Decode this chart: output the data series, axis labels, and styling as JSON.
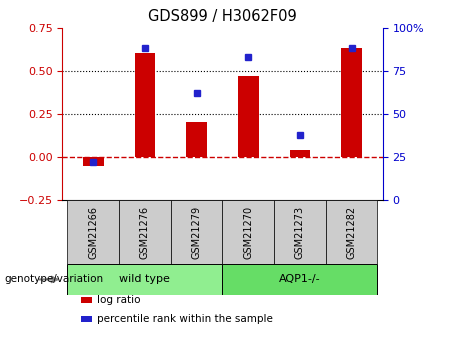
{
  "title": "GDS899 / H3062F09",
  "samples": [
    "GSM21266",
    "GSM21276",
    "GSM21279",
    "GSM21270",
    "GSM21273",
    "GSM21282"
  ],
  "log_ratios": [
    -0.05,
    0.6,
    0.2,
    0.47,
    0.04,
    0.63
  ],
  "percentile_ranks": [
    22,
    88,
    62,
    83,
    38,
    88
  ],
  "ylim_left": [
    -0.25,
    0.75
  ],
  "ylim_right": [
    0,
    100
  ],
  "bar_color": "#cc0000",
  "dot_color": "#2222cc",
  "hline_color": "#cc0000",
  "dotted_lines": [
    0.25,
    0.5
  ],
  "groups": [
    {
      "label": "wild type",
      "indices": [
        0,
        1,
        2
      ],
      "color": "#90ee90"
    },
    {
      "label": "AQP1-/-",
      "indices": [
        3,
        4,
        5
      ],
      "color": "#66dd66"
    }
  ],
  "group_label": "genotype/variation",
  "legend_items": [
    {
      "color": "#cc0000",
      "label": "log ratio"
    },
    {
      "color": "#2222cc",
      "label": "percentile rank within the sample"
    }
  ],
  "tick_label_color_left": "#cc0000",
  "tick_label_color_right": "#0000cc",
  "background_color": "#ffffff",
  "xlabel_area_color": "#cccccc",
  "left_yticks": [
    -0.25,
    0,
    0.25,
    0.5,
    0.75
  ],
  "right_yticks": [
    0,
    25,
    50,
    75,
    100
  ],
  "right_yticklabels": [
    "0",
    "25",
    "50",
    "75",
    "100%"
  ]
}
